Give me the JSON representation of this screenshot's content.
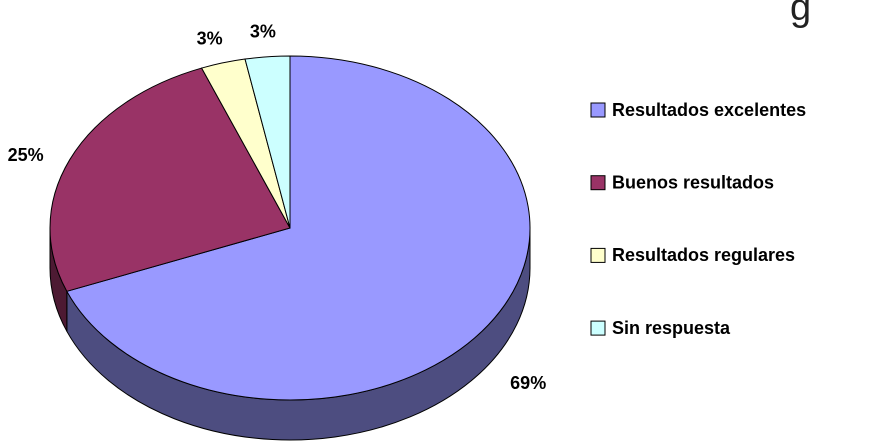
{
  "chart_data": {
    "type": "pie",
    "title": "g",
    "categories": [
      "Resultados excelentes",
      "Buenos resultados",
      "Resultados regulares",
      "Sin respuesta"
    ],
    "values": [
      69,
      25,
      3,
      3
    ],
    "value_labels": [
      "69%",
      "25%",
      "3%",
      "3%"
    ],
    "colors": [
      "#9999ff",
      "#993366",
      "#ffffcc",
      "#ccffff"
    ],
    "legend": "right"
  }
}
